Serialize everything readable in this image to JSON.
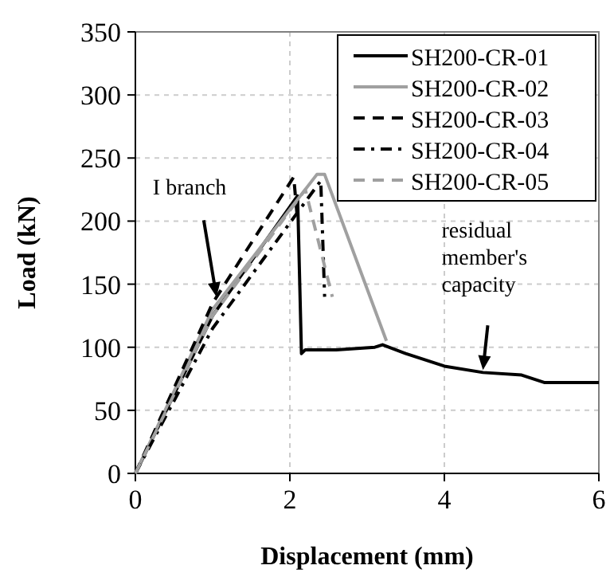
{
  "chart_data": {
    "type": "line",
    "xlabel": "Displacement (mm)",
    "ylabel": "Load (kN)",
    "xlim": [
      0,
      6
    ],
    "xticks": [
      0,
      2,
      4,
      6
    ],
    "ylim": [
      0,
      350
    ],
    "yticks": [
      0,
      50,
      100,
      150,
      200,
      250,
      300,
      350
    ],
    "grid": true,
    "legend": "top right",
    "series": [
      {
        "name": "SH200-CR-01",
        "color": "#000000",
        "line_style": "solid",
        "x": [
          0,
          1,
          2.1,
          2.15,
          2.2,
          2.6,
          3.1,
          3.2,
          3.5,
          4,
          4.5,
          5,
          5.3,
          6
        ],
        "values": [
          0,
          125,
          220,
          95,
          98,
          98,
          100,
          102,
          95,
          85,
          80,
          78,
          72,
          72
        ]
      },
      {
        "name": "SH200-CR-02",
        "color": "#a0a0a0",
        "line_style": "solid",
        "x": [
          0,
          1,
          2.35,
          2.45,
          3.25
        ],
        "values": [
          0,
          130,
          237,
          237,
          105
        ]
      },
      {
        "name": "SH200-CR-03",
        "color": "#000000",
        "line_style": "dashed",
        "x": [
          0,
          1,
          2.05,
          2.1
        ],
        "values": [
          0,
          135,
          235,
          200
        ]
      },
      {
        "name": "SH200-CR-04",
        "color": "#000000",
        "line_style": "dashdot",
        "x": [
          0,
          1,
          2.4,
          2.45
        ],
        "values": [
          0,
          115,
          232,
          140
        ]
      },
      {
        "name": "SH200-CR-05",
        "color": "#a0a0a0",
        "line_style": "dashed",
        "x": [
          0,
          1,
          2.2,
          2.55
        ],
        "values": [
          0,
          125,
          225,
          140
        ]
      }
    ],
    "annotations": [
      {
        "text": "I branch",
        "x": 1.05,
        "y": 140
      },
      {
        "text": "residual member's capacity",
        "x": 4.5,
        "y": 82
      }
    ]
  }
}
